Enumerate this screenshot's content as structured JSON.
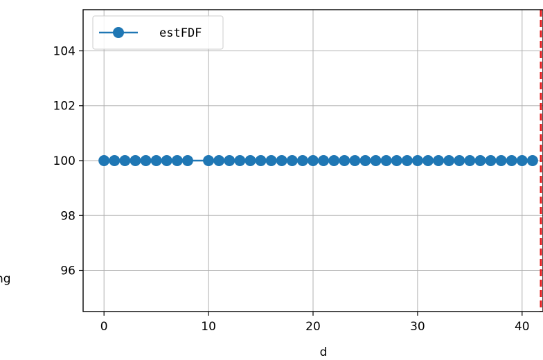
{
  "chart_data": {
    "type": "line",
    "title": "",
    "xlabel": "d",
    "ylabel": "ng",
    "xlim": [
      -2,
      42
    ],
    "ylim": [
      94.5,
      105.5
    ],
    "xticks": [
      0,
      10,
      20,
      30,
      40
    ],
    "yticks": [
      96,
      98,
      100,
      102,
      104
    ],
    "grid": true,
    "legend_position": "top-left",
    "series": [
      {
        "name": "estFDF",
        "color": "#1f77b4",
        "marker": "circle",
        "points": [
          [
            0,
            100
          ],
          [
            1,
            100
          ],
          [
            2,
            100
          ],
          [
            3,
            100
          ],
          [
            4,
            100
          ],
          [
            5,
            100
          ],
          [
            6,
            100
          ],
          [
            7,
            100
          ],
          [
            8,
            100
          ],
          [
            10,
            100
          ],
          [
            11,
            100
          ],
          [
            12,
            100
          ],
          [
            13,
            100
          ],
          [
            14,
            100
          ],
          [
            15,
            100
          ],
          [
            16,
            100
          ],
          [
            17,
            100
          ],
          [
            18,
            100
          ],
          [
            19,
            100
          ],
          [
            20,
            100
          ],
          [
            21,
            100
          ],
          [
            22,
            100
          ],
          [
            23,
            100
          ],
          [
            24,
            100
          ],
          [
            25,
            100
          ],
          [
            26,
            100
          ],
          [
            27,
            100
          ],
          [
            28,
            100
          ],
          [
            29,
            100
          ],
          [
            30,
            100
          ],
          [
            31,
            100
          ],
          [
            32,
            100
          ],
          [
            33,
            100
          ],
          [
            34,
            100
          ],
          [
            35,
            100
          ],
          [
            36,
            100
          ],
          [
            37,
            100
          ],
          [
            38,
            100
          ],
          [
            39,
            100
          ],
          [
            40,
            100
          ],
          [
            41,
            100
          ]
        ]
      }
    ],
    "vertical_line": {
      "x": 41.8,
      "color": "#e31a1c",
      "style": "dashed"
    }
  }
}
